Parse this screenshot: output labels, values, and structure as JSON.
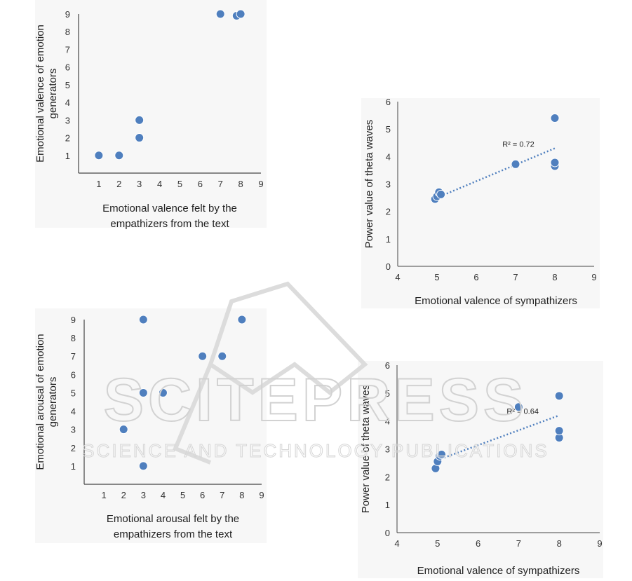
{
  "colors": {
    "point": "#4f7fbe",
    "trend": "#4f7fbe",
    "axis": "#444444",
    "watermark": "#d2d2d2"
  },
  "watermark": {
    "text": "SCITEPRESS",
    "subtext": "SCIENCE AND TECHNOLOGY PUBLICATIONS"
  },
  "chart_data": [
    {
      "type": "scatter",
      "title": "",
      "xlabel": [
        "Emotional valence felt by the",
        "empathizers from the text"
      ],
      "ylabel": [
        "Emotional valence of emotion",
        "generators"
      ],
      "xlim": [
        0,
        9
      ],
      "ylim": [
        0,
        9
      ],
      "xticks": [
        1,
        2,
        3,
        4,
        5,
        6,
        7,
        8,
        9
      ],
      "yticks": [
        1,
        2,
        3,
        4,
        5,
        6,
        7,
        8,
        9
      ],
      "grid": false,
      "points": [
        [
          1,
          1
        ],
        [
          2,
          1
        ],
        [
          3,
          2
        ],
        [
          3,
          3
        ],
        [
          7,
          9
        ],
        [
          7.8,
          8.9
        ],
        [
          8,
          9
        ]
      ],
      "trendline": null,
      "r2": ""
    },
    {
      "type": "scatter",
      "title": "",
      "xlabel": [
        "Emotional valence of sympathizers"
      ],
      "ylabel": [
        "Power value of theta waves"
      ],
      "xlim": [
        4,
        9
      ],
      "ylim": [
        0,
        6
      ],
      "xticks": [
        4,
        5,
        6,
        7,
        8,
        9
      ],
      "yticks": [
        0,
        1,
        2,
        3,
        4,
        5,
        6
      ],
      "grid": false,
      "points": [
        [
          4.95,
          2.45
        ],
        [
          5,
          2.55
        ],
        [
          5.05,
          2.7
        ],
        [
          5.1,
          2.62
        ],
        [
          7,
          3.72
        ],
        [
          8,
          3.65
        ],
        [
          8,
          3.78
        ],
        [
          8,
          5.4
        ]
      ],
      "trendline": [
        [
          5,
          2.5
        ],
        [
          8,
          4.3
        ]
      ],
      "r2": "R² = 0.72"
    },
    {
      "type": "scatter",
      "title": "",
      "xlabel": [
        "Emotional arousal felt by the",
        "empathizers from the text"
      ],
      "ylabel": [
        "Emotional arousal of emotion",
        "generators"
      ],
      "xlim": [
        0,
        9
      ],
      "ylim": [
        0,
        9
      ],
      "xticks": [
        1,
        2,
        3,
        4,
        5,
        6,
        7,
        8,
        9
      ],
      "yticks": [
        1,
        2,
        3,
        4,
        5,
        6,
        7,
        8,
        9
      ],
      "grid": false,
      "points": [
        [
          2,
          3
        ],
        [
          3,
          1
        ],
        [
          3,
          5
        ],
        [
          3,
          9
        ],
        [
          4,
          5
        ],
        [
          6,
          7
        ],
        [
          7,
          7
        ],
        [
          8,
          9
        ]
      ],
      "trendline": null,
      "r2": ""
    },
    {
      "type": "scatter",
      "title": "",
      "xlabel": [
        "Emotional valence of sympathizers"
      ],
      "ylabel": [
        "Power value of theta waves"
      ],
      "xlim": [
        4,
        9
      ],
      "ylim": [
        0,
        6
      ],
      "xticks": [
        4,
        5,
        6,
        7,
        8,
        9
      ],
      "yticks": [
        0,
        1,
        2,
        3,
        4,
        5,
        6
      ],
      "grid": false,
      "points": [
        [
          4.95,
          2.3
        ],
        [
          5,
          2.55
        ],
        [
          5.05,
          2.75
        ],
        [
          5.1,
          2.8
        ],
        [
          7,
          4.5
        ],
        [
          8,
          3.4
        ],
        [
          8,
          3.65
        ],
        [
          8,
          4.9
        ]
      ],
      "trendline": [
        [
          5,
          2.6
        ],
        [
          8,
          4.2
        ]
      ],
      "r2": "R² = 0.64"
    }
  ]
}
